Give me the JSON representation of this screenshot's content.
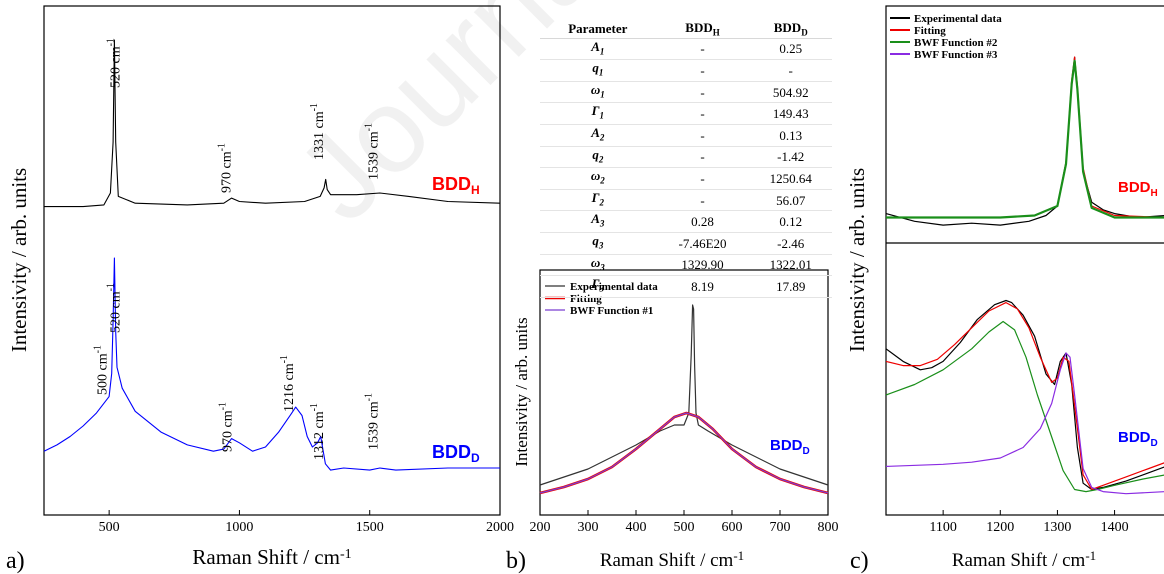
{
  "watermark": "Journal Pre-proof",
  "panels": {
    "a": {
      "label": "a)"
    },
    "b": {
      "label": "b)"
    },
    "c": {
      "label": "c)"
    }
  },
  "table": {
    "headers": [
      "Parameter",
      "BDDH",
      "BDDD"
    ],
    "rows": [
      {
        "param": "A1",
        "h": "-",
        "d": "0.25"
      },
      {
        "param": "q1",
        "h": "-",
        "d": "-"
      },
      {
        "param": "ω1",
        "h": "-",
        "d": "504.92"
      },
      {
        "param": "Γ1",
        "h": "-",
        "d": "149.43"
      },
      {
        "param": "A2",
        "h": "-",
        "d": "0.13"
      },
      {
        "param": "q2",
        "h": "-",
        "d": "-1.42"
      },
      {
        "param": "ω2",
        "h": "-",
        "d": "1250.64"
      },
      {
        "param": "Γ2",
        "h": "-",
        "d": "56.07"
      },
      {
        "param": "A3",
        "h": "0.28",
        "d": "0.12"
      },
      {
        "param": "q3",
        "h": "-7.46E20",
        "d": "-2.46"
      },
      {
        "param": "ω3",
        "h": "1329.90",
        "d": "1322.01"
      },
      {
        "param": "Γ3",
        "h": "8.19",
        "d": "17.89"
      }
    ]
  },
  "chart_data": [
    {
      "type": "line",
      "panel": "a",
      "xlabel": "Raman Shift / cm-1",
      "ylabel": "Intensivity / arb. units",
      "xlim": [
        250,
        2000
      ],
      "xticks": [
        500,
        1000,
        1500,
        2000
      ],
      "yticks": "none",
      "grid": false,
      "series": [
        {
          "name": "BDDH",
          "color": "#000000",
          "x": [
            250,
            400,
            480,
            505,
            515,
            520,
            525,
            535,
            600,
            800,
            940,
            970,
            1000,
            1100,
            1250,
            1310,
            1325,
            1331,
            1337,
            1350,
            1450,
            1539,
            1650,
            1800,
            2000
          ],
          "y": [
            0.02,
            0.02,
            0.03,
            0.1,
            0.4,
            1.0,
            0.4,
            0.08,
            0.04,
            0.03,
            0.04,
            0.07,
            0.05,
            0.04,
            0.05,
            0.08,
            0.13,
            0.18,
            0.12,
            0.09,
            0.09,
            0.1,
            0.08,
            0.05,
            0.04
          ]
        },
        {
          "name": "BDDD",
          "color": "#0000ff",
          "x": [
            250,
            300,
            350,
            400,
            450,
            500,
            510,
            515,
            520,
            525,
            530,
            550,
            600,
            700,
            800,
            900,
            940,
            970,
            1000,
            1050,
            1100,
            1150,
            1200,
            1216,
            1240,
            1260,
            1280,
            1300,
            1312,
            1330,
            1350,
            1400,
            1500,
            1539,
            1600,
            1800,
            2000
          ],
          "y": [
            0.08,
            0.11,
            0.15,
            0.2,
            0.26,
            0.34,
            0.45,
            0.7,
            1.0,
            0.65,
            0.48,
            0.38,
            0.27,
            0.17,
            0.11,
            0.08,
            0.09,
            0.14,
            0.12,
            0.08,
            0.1,
            0.17,
            0.26,
            0.29,
            0.25,
            0.15,
            0.1,
            0.12,
            0.15,
            0.02,
            -0.01,
            0.0,
            -0.01,
            0.0,
            -0.01,
            0.0,
            0.0
          ]
        }
      ],
      "annotations": [
        {
          "text": "520 cm",
          "sup": "-1",
          "x": 520,
          "series": "BDDH"
        },
        {
          "text": "970 cm",
          "sup": "-1",
          "x": 970,
          "series": "BDDH"
        },
        {
          "text": "1331 cm",
          "sup": "-1",
          "x": 1331,
          "series": "BDDH"
        },
        {
          "text": "1539 cm",
          "sup": "-1",
          "x": 1539,
          "series": "BDDH"
        },
        {
          "text": "500 cm",
          "sup": "-1",
          "x": 500,
          "series": "BDDD"
        },
        {
          "text": "520 cm",
          "sup": "-1",
          "x": 520,
          "series": "BDDD"
        },
        {
          "text": "970 cm",
          "sup": "-1",
          "x": 970,
          "series": "BDDD"
        },
        {
          "text": "1216 cm",
          "sup": "-1",
          "x": 1216,
          "series": "BDDD"
        },
        {
          "text": "1312 cm",
          "sup": "-1",
          "x": 1312,
          "series": "BDDD"
        },
        {
          "text": "1539 cm",
          "sup": "-1",
          "x": 1539,
          "series": "BDDD"
        }
      ],
      "series_labels": [
        {
          "text": "BDD",
          "sub": "H",
          "color": "#ff0000"
        },
        {
          "text": "BDD",
          "sub": "D",
          "color": "#0000ff"
        }
      ]
    },
    {
      "type": "line",
      "panel": "b",
      "xlabel": "Raman Shift / cm-1",
      "ylabel": "Intensivity / arb. units",
      "xlim": [
        200,
        800
      ],
      "xticks": [
        200,
        300,
        400,
        500,
        600,
        700,
        800
      ],
      "grid": false,
      "legend": "top-left",
      "series_label": {
        "text": "BDD",
        "sub": "D",
        "color": "#0000ff"
      },
      "series": [
        {
          "name": "Experimental data",
          "color": "#333333",
          "width": 1.2,
          "x": [
            200,
            250,
            300,
            350,
            400,
            450,
            480,
            500,
            510,
            515,
            518,
            520,
            522,
            525,
            530,
            550,
            600,
            650,
            700,
            750,
            800
          ],
          "y": [
            0.1,
            0.14,
            0.18,
            0.24,
            0.3,
            0.37,
            0.4,
            0.4,
            0.46,
            0.75,
            1.0,
            0.98,
            0.7,
            0.46,
            0.4,
            0.37,
            0.3,
            0.24,
            0.18,
            0.14,
            0.1
          ]
        },
        {
          "name": "Fitting",
          "color": "#ee0000",
          "width": 2.6,
          "x": [
            200,
            250,
            300,
            350,
            400,
            450,
            480,
            505,
            530,
            560,
            600,
            650,
            700,
            750,
            800
          ],
          "y": [
            0.06,
            0.09,
            0.13,
            0.19,
            0.28,
            0.38,
            0.44,
            0.46,
            0.44,
            0.38,
            0.28,
            0.19,
            0.13,
            0.09,
            0.06
          ]
        },
        {
          "name": "BWF Function #1",
          "color": "#7a3fd1",
          "width": 1.2,
          "x": [
            200,
            250,
            300,
            350,
            400,
            450,
            480,
            505,
            530,
            560,
            600,
            650,
            700,
            750,
            800
          ],
          "y": [
            0.06,
            0.09,
            0.13,
            0.19,
            0.28,
            0.38,
            0.44,
            0.46,
            0.44,
            0.38,
            0.28,
            0.19,
            0.13,
            0.09,
            0.06
          ]
        }
      ]
    },
    {
      "type": "line",
      "panel": "c",
      "xlabel": "Raman Shift / cm-1",
      "ylabel": "Intensivity / arb. units",
      "xlim": [
        1000,
        1490
      ],
      "xticks": [
        1100,
        1200,
        1300,
        1400
      ],
      "grid": false,
      "legend": "top-left",
      "subplots": [
        {
          "series_label": {
            "text": "BDD",
            "sub": "H",
            "color": "#ff0000"
          },
          "series": [
            {
              "name": "Experimental data",
              "color": "#000000",
              "width": 1.2,
              "x": [
                1000,
                1050,
                1100,
                1150,
                1200,
                1250,
                1280,
                1300,
                1315,
                1325,
                1330,
                1335,
                1345,
                1360,
                1380,
                1400,
                1440,
                1490
              ],
              "y": [
                0.18,
                0.14,
                0.12,
                0.13,
                0.12,
                0.14,
                0.17,
                0.22,
                0.45,
                0.85,
                1.0,
                0.82,
                0.4,
                0.24,
                0.2,
                0.18,
                0.16,
                0.17
              ]
            },
            {
              "name": "Fitting",
              "color": "#ee0000",
              "width": 1.2,
              "x": [
                1000,
                1100,
                1200,
                1260,
                1300,
                1315,
                1325,
                1330,
                1335,
                1345,
                1360,
                1400,
                1490
              ],
              "y": [
                0.16,
                0.16,
                0.16,
                0.17,
                0.22,
                0.45,
                0.88,
                1.0,
                0.85,
                0.42,
                0.22,
                0.17,
                0.16
              ]
            },
            {
              "name": "BWF Function #2",
              "color": "#1a8f1a",
              "width": 2.2,
              "x": [
                1000,
                1100,
                1200,
                1260,
                1300,
                1315,
                1325,
                1330,
                1335,
                1345,
                1360,
                1400,
                1490
              ],
              "y": [
                0.16,
                0.16,
                0.16,
                0.17,
                0.22,
                0.44,
                0.86,
                0.98,
                0.83,
                0.4,
                0.21,
                0.16,
                0.16
              ]
            }
          ]
        },
        {
          "series_label": {
            "text": "BDD",
            "sub": "D",
            "color": "#0000ff"
          },
          "series": [
            {
              "name": "Experimental data",
              "color": "#000000",
              "width": 1.2,
              "x": [
                1000,
                1030,
                1060,
                1080,
                1100,
                1130,
                1160,
                1190,
                1210,
                1220,
                1240,
                1260,
                1280,
                1295,
                1305,
                1315,
                1325,
                1335,
                1345,
                1360,
                1380,
                1420,
                1460,
                1490
              ],
              "y": [
                0.72,
                0.66,
                0.62,
                0.63,
                0.66,
                0.75,
                0.86,
                0.93,
                0.95,
                0.94,
                0.88,
                0.78,
                0.6,
                0.55,
                0.66,
                0.7,
                0.55,
                0.25,
                0.08,
                0.05,
                0.06,
                0.09,
                0.13,
                0.16
              ]
            },
            {
              "name": "Fitting",
              "color": "#ee0000",
              "width": 1.2,
              "x": [
                1000,
                1030,
                1060,
                1090,
                1120,
                1150,
                1180,
                1210,
                1230,
                1250,
                1270,
                1290,
                1300,
                1310,
                1320,
                1330,
                1345,
                1360,
                1380,
                1420,
                1460,
                1490
              ],
              "y": [
                0.66,
                0.64,
                0.64,
                0.67,
                0.74,
                0.82,
                0.9,
                0.94,
                0.91,
                0.82,
                0.68,
                0.56,
                0.58,
                0.68,
                0.66,
                0.45,
                0.12,
                0.05,
                0.07,
                0.11,
                0.15,
                0.18
              ]
            },
            {
              "name": "BWF Function #2",
              "color": "#1a8f1a",
              "width": 1.2,
              "x": [
                1000,
                1050,
                1100,
                1150,
                1180,
                1205,
                1225,
                1245,
                1265,
                1290,
                1310,
                1330,
                1350,
                1370,
                1400,
                1450,
                1490
              ],
              "y": [
                0.5,
                0.55,
                0.62,
                0.72,
                0.8,
                0.85,
                0.81,
                0.68,
                0.5,
                0.3,
                0.14,
                0.05,
                0.04,
                0.05,
                0.07,
                0.1,
                0.12
              ]
            },
            {
              "name": "BWF Function #3",
              "color": "#8a2be2",
              "width": 1.2,
              "x": [
                1000,
                1100,
                1150,
                1200,
                1240,
                1270,
                1290,
                1305,
                1315,
                1322,
                1330,
                1345,
                1360,
                1380,
                1420,
                1490
              ],
              "y": [
                0.16,
                0.17,
                0.18,
                0.2,
                0.25,
                0.34,
                0.46,
                0.62,
                0.7,
                0.68,
                0.5,
                0.15,
                0.06,
                0.04,
                0.03,
                0.04
              ]
            }
          ]
        }
      ]
    }
  ]
}
